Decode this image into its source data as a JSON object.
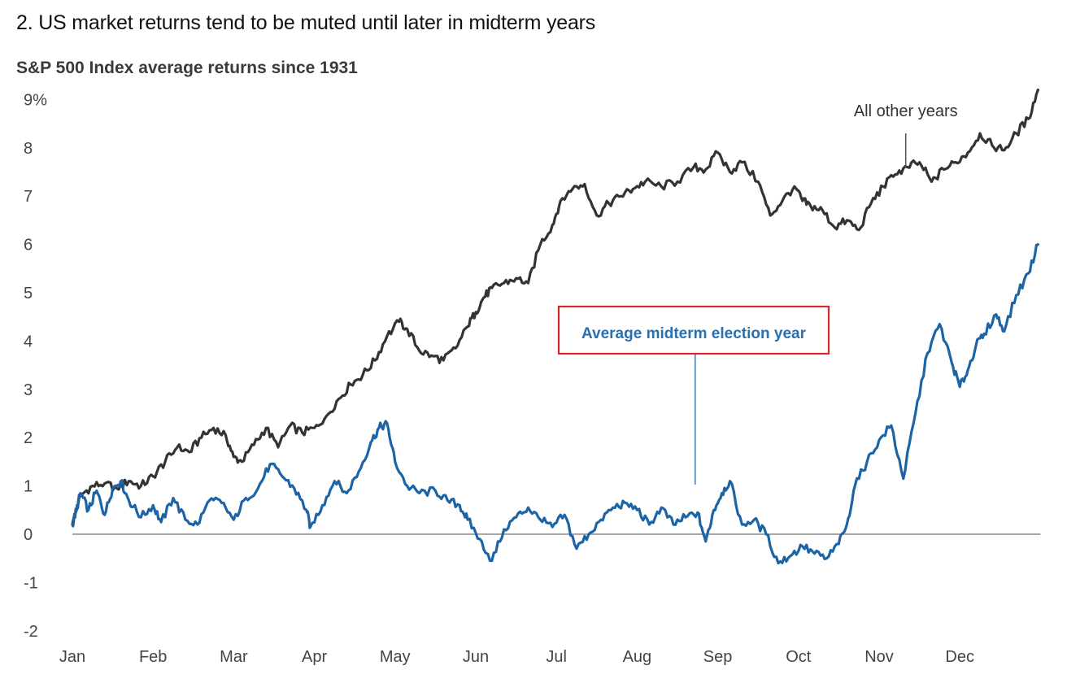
{
  "headline": "2. US market returns tend to be muted until later in midterm years",
  "chart_data": {
    "type": "line",
    "title": "S&P 500 Index average returns since 1931",
    "xlabel": "",
    "ylabel": "",
    "ylim": [
      -2,
      9
    ],
    "y_ticks": [
      9,
      8,
      7,
      6,
      5,
      4,
      3,
      2,
      1,
      0,
      -1,
      -2
    ],
    "y_tick_labels": [
      "9%",
      "8",
      "7",
      "6",
      "5",
      "4",
      "3",
      "2",
      "1",
      "0",
      "-1",
      "-2"
    ],
    "x_range": [
      0,
      12
    ],
    "x_ticks": [
      0,
      1,
      2,
      3,
      4,
      5,
      6,
      7,
      8,
      9,
      10,
      11
    ],
    "x_tick_labels": [
      "Jan",
      "Feb",
      "Mar",
      "Apr",
      "May",
      "Jun",
      "Jul",
      "Aug",
      "Sep",
      "Oct",
      "Nov",
      "Dec"
    ],
    "grid": false,
    "zero_line": true,
    "series": [
      {
        "name": "All other years",
        "color": "#333333",
        "x": [
          0,
          0.1,
          0.25,
          0.4,
          0.55,
          0.7,
          0.85,
          1.0,
          1.15,
          1.3,
          1.45,
          1.6,
          1.75,
          1.9,
          2.0,
          2.1,
          2.25,
          2.4,
          2.55,
          2.7,
          2.85,
          3.0,
          3.15,
          3.3,
          3.45,
          3.6,
          3.75,
          3.9,
          4.05,
          4.15,
          4.3,
          4.45,
          4.6,
          4.75,
          4.9,
          5.0,
          5.1,
          5.2,
          5.35,
          5.5,
          5.65,
          5.8,
          5.95,
          6.05,
          6.2,
          6.35,
          6.5,
          6.65,
          6.8,
          6.95,
          7.1,
          7.3,
          7.5,
          7.7,
          7.85,
          8.0,
          8.15,
          8.3,
          8.5,
          8.65,
          8.8,
          8.95,
          9.05,
          9.15,
          9.3,
          9.45,
          9.6,
          9.75,
          9.9,
          10.05,
          10.2,
          10.35,
          10.5,
          10.65,
          10.8,
          10.95,
          11.1,
          11.25,
          11.4,
          11.55,
          11.7,
          11.85,
          11.97
        ],
        "values": [
          0.2,
          0.8,
          1.0,
          1.05,
          0.95,
          1.1,
          1.0,
          1.2,
          1.5,
          1.8,
          1.7,
          2.0,
          2.2,
          2.05,
          1.6,
          1.5,
          1.85,
          2.2,
          1.8,
          2.25,
          2.1,
          2.2,
          2.45,
          2.8,
          3.1,
          3.3,
          3.6,
          4.1,
          4.4,
          4.25,
          3.8,
          3.7,
          3.6,
          3.85,
          4.3,
          4.6,
          4.9,
          5.1,
          5.2,
          5.3,
          5.2,
          6.0,
          6.4,
          6.9,
          7.15,
          7.25,
          6.6,
          6.85,
          7.0,
          7.15,
          7.3,
          7.2,
          7.3,
          7.6,
          7.55,
          7.9,
          7.5,
          7.7,
          7.3,
          6.6,
          6.9,
          7.2,
          6.9,
          6.8,
          6.7,
          6.35,
          6.5,
          6.3,
          6.85,
          7.2,
          7.45,
          7.6,
          7.7,
          7.3,
          7.55,
          7.7,
          7.9,
          8.3,
          8.05,
          7.95,
          8.3,
          8.6,
          9.2
        ]
      },
      {
        "name": "Average midterm election year",
        "color": "#1c64a5",
        "x": [
          0,
          0.05,
          0.1,
          0.2,
          0.3,
          0.4,
          0.5,
          0.6,
          0.7,
          0.85,
          1.0,
          1.1,
          1.25,
          1.4,
          1.55,
          1.7,
          1.85,
          2.0,
          2.15,
          2.3,
          2.45,
          2.6,
          2.75,
          2.9,
          2.95,
          3.1,
          3.25,
          3.4,
          3.55,
          3.7,
          3.8,
          3.9,
          4.0,
          4.15,
          4.3,
          4.5,
          4.65,
          4.8,
          4.9,
          5.05,
          5.2,
          5.35,
          5.5,
          5.65,
          5.8,
          5.95,
          6.1,
          6.25,
          6.4,
          6.55,
          6.7,
          6.85,
          7.0,
          7.15,
          7.3,
          7.45,
          7.6,
          7.75,
          7.85,
          7.95,
          8.05,
          8.15,
          8.3,
          8.45,
          8.6,
          8.75,
          8.9,
          9.05,
          9.2,
          9.35,
          9.5,
          9.6,
          9.7,
          9.85,
          10.0,
          10.15,
          10.3,
          10.45,
          10.6,
          10.75,
          10.9,
          11.0,
          11.1,
          11.2,
          11.3,
          11.45,
          11.55,
          11.7,
          11.85,
          11.97
        ],
        "values": [
          0.2,
          0.5,
          0.85,
          0.5,
          0.9,
          0.4,
          0.95,
          1.1,
          0.7,
          0.35,
          0.6,
          0.25,
          0.75,
          0.3,
          0.2,
          0.7,
          0.65,
          0.3,
          0.75,
          0.95,
          1.45,
          1.2,
          0.95,
          0.5,
          0.15,
          0.6,
          1.1,
          0.85,
          1.3,
          1.9,
          2.2,
          2.3,
          1.5,
          1.0,
          0.85,
          0.9,
          0.7,
          0.6,
          0.3,
          -0.1,
          -0.55,
          0.1,
          0.35,
          0.55,
          0.3,
          0.15,
          0.4,
          -0.3,
          0.0,
          0.3,
          0.55,
          0.65,
          0.5,
          0.2,
          0.55,
          0.2,
          0.35,
          0.45,
          -0.15,
          0.5,
          0.85,
          1.1,
          0.2,
          0.3,
          0.0,
          -0.6,
          -0.45,
          -0.25,
          -0.4,
          -0.5,
          -0.2,
          0.2,
          1.0,
          1.5,
          1.95,
          2.25,
          1.15,
          2.5,
          3.75,
          4.35,
          3.55,
          3.05,
          3.4,
          3.9,
          4.15,
          4.55,
          4.2,
          4.95,
          5.4,
          6.0
        ]
      }
    ],
    "annotations": [
      {
        "text": "All other years",
        "series": "All other years"
      },
      {
        "text": "Average midterm election year",
        "series": "Average midterm election year"
      }
    ]
  }
}
